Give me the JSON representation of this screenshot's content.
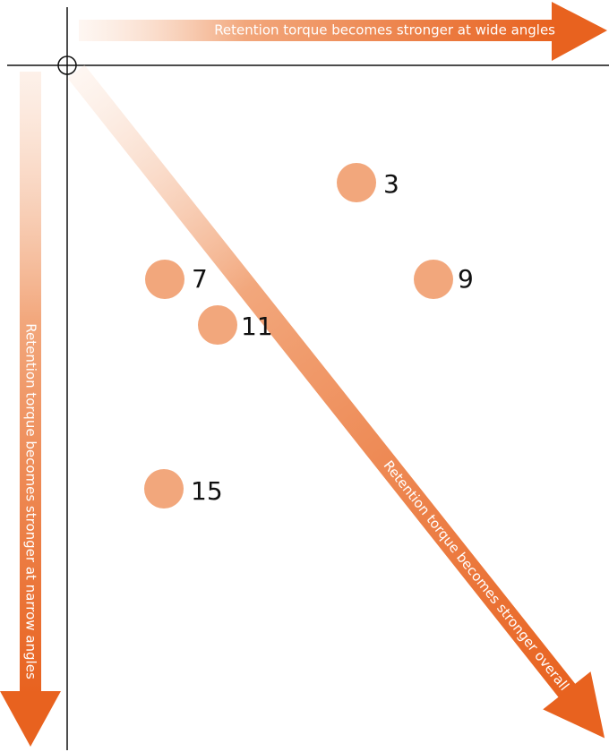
{
  "arrows": {
    "horizontal": "Retention torque becomes stronger at wide angles",
    "vertical": "Retention torque becomes stronger at narrow angles",
    "diagonal": "Retention torque becomes stronger overall"
  },
  "points": [
    {
      "label": "3"
    },
    {
      "label": "7"
    },
    {
      "label": "9"
    },
    {
      "label": "11"
    },
    {
      "label": "15"
    }
  ]
}
